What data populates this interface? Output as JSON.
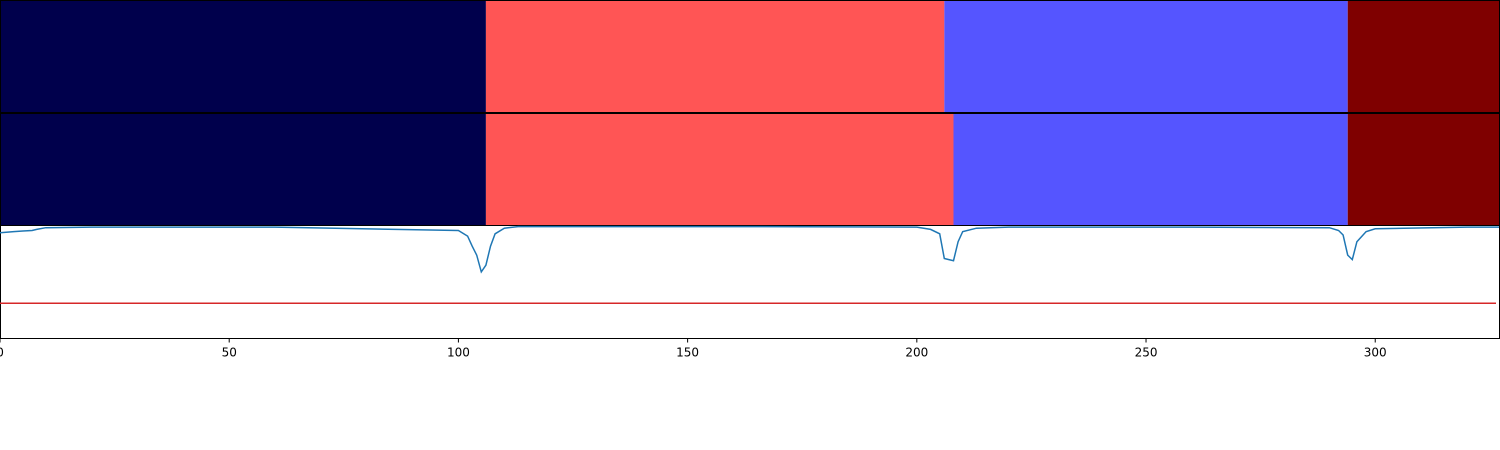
{
  "chart_data": {
    "type": "area",
    "x_axis": {
      "range": [
        0,
        327
      ],
      "ticks": [
        0,
        50,
        100,
        150,
        200,
        250,
        300
      ],
      "tick_labels": [
        "0",
        "50",
        "100",
        "150",
        "200",
        "250",
        "300"
      ]
    },
    "segment_rows": [
      {
        "name": "",
        "segments": [
          {
            "start": 0,
            "end": 106,
            "color": "#00004c"
          },
          {
            "start": 106,
            "end": 206,
            "color": "#ff5555"
          },
          {
            "start": 206,
            "end": 294,
            "color": "#5555ff"
          },
          {
            "start": 294,
            "end": 327,
            "color": "#7f0000"
          }
        ]
      },
      {
        "name": "",
        "segments": [
          {
            "start": 0,
            "end": 106,
            "color": "#00004c"
          },
          {
            "start": 106,
            "end": 208,
            "color": "#ff5555"
          },
          {
            "start": 208,
            "end": 294,
            "color": "#5555ff"
          },
          {
            "start": 294,
            "end": 327,
            "color": "#7f0000"
          }
        ]
      }
    ],
    "curve": {
      "color": "#1f77b4",
      "ylim": [
        0,
        1
      ],
      "x": [
        0,
        3,
        5,
        7,
        8,
        10,
        20,
        60,
        100,
        102,
        103,
        104,
        105,
        106,
        107,
        108,
        110,
        113,
        120,
        160,
        200,
        203,
        205,
        206,
        207,
        208,
        209,
        210,
        213,
        220,
        260,
        290,
        292,
        293,
        294,
        295,
        296,
        298,
        300,
        320,
        327
      ],
      "y": [
        0.94,
        0.95,
        0.955,
        0.96,
        0.97,
        0.985,
        0.99,
        0.99,
        0.96,
        0.91,
        0.82,
        0.74,
        0.59,
        0.65,
        0.82,
        0.93,
        0.98,
        0.995,
        0.995,
        0.995,
        0.99,
        0.97,
        0.93,
        0.71,
        0.7,
        0.69,
        0.86,
        0.95,
        0.98,
        0.99,
        0.99,
        0.985,
        0.96,
        0.92,
        0.74,
        0.7,
        0.86,
        0.95,
        0.975,
        0.99,
        0.99
      ]
    },
    "threshold": {
      "color": "#d62728",
      "value": 0.31
    }
  }
}
